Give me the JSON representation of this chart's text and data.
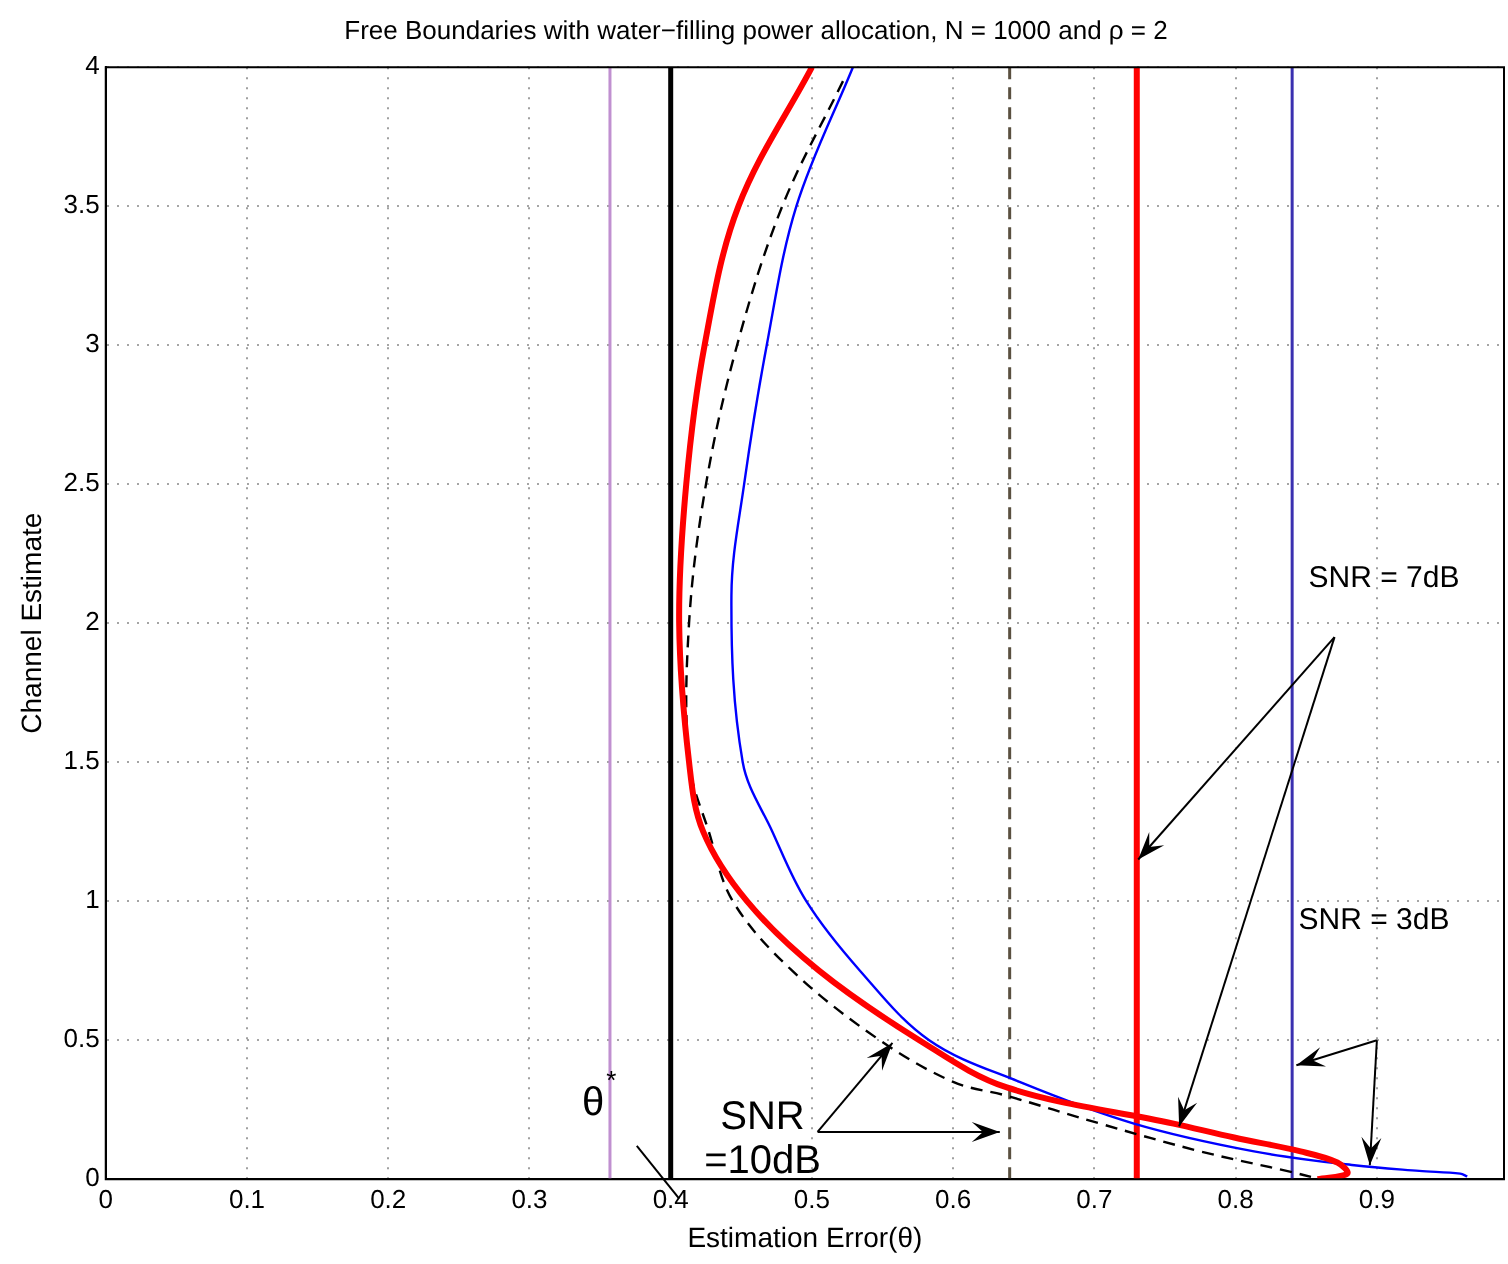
{
  "chart_data": {
    "type": "line",
    "title": "Free Boundaries with water−filling power allocation, N = 1000 and ρ = 2",
    "xlabel": "Estimation Error(θ)",
    "ylabel": "Channel Estimate",
    "xlim": [
      0,
      0.99
    ],
    "ylim": [
      0,
      4
    ],
    "xticks": [
      0,
      0.1,
      0.2,
      0.3,
      0.4,
      0.5,
      0.6,
      0.7,
      0.8,
      0.9
    ],
    "yticks": [
      0,
      0.5,
      1,
      1.5,
      2,
      2.5,
      3,
      3.5,
      4
    ],
    "grid": true,
    "legend": false,
    "marker": "none",
    "series": [
      {
        "color": "#ff0000",
        "line_style": "solid",
        "x": [
          0.5,
          0.448,
          0.424,
          0.411,
          0.406,
          0.413,
          0.423,
          0.454,
          0.505,
          0.576,
          0.638,
          0.756,
          0.799,
          0.846,
          0.872,
          0.879,
          0.858
        ],
        "values": [
          4,
          3.5,
          3,
          2.5,
          2,
          1.5,
          1.25,
          1,
          0.75,
          0.5,
          0.33,
          0.2,
          0.15,
          0.1,
          0.06,
          0.02,
          0
        ]
      },
      {
        "color": "#0000ff",
        "line_style": "solid",
        "x": [
          0.529,
          0.489,
          0.468,
          0.452,
          0.443,
          0.451,
          0.472,
          0.496,
          0.534,
          0.583,
          0.647,
          0.728,
          0.813,
          0.884,
          0.93,
          0.959,
          0.964
        ],
        "values": [
          4,
          3.5,
          3,
          2.5,
          2.1,
          1.5,
          1.25,
          1,
          0.75,
          0.5,
          0.35,
          0.2,
          0.1,
          0.05,
          0.03,
          0.02,
          0.01
        ]
      },
      {
        "color": "#000000",
        "line_style": "dashed",
        "x": [
          0.522,
          0.479,
          0.447,
          0.425,
          0.413,
          0.413,
          0.427,
          0.444,
          0.486,
          0.548,
          0.6,
          0.638,
          0.704,
          0.775,
          0.836,
          0.86
        ],
        "values": [
          3.95,
          3.5,
          3,
          2.5,
          2,
          1.5,
          1.25,
          1,
          0.75,
          0.5,
          0.35,
          0.3,
          0.2,
          0.1,
          0.03,
          0
        ]
      }
    ],
    "ref_lines": [
      {
        "axis": "x",
        "value": 0.357,
        "color": "#c090d0"
      },
      {
        "axis": "x",
        "value": 0.4,
        "color": "#000000"
      },
      {
        "axis": "x",
        "value": 0.64,
        "color": "#5a5040",
        "line_style": "dashed"
      },
      {
        "axis": "x",
        "value": 0.73,
        "color": "#ff0000"
      },
      {
        "axis": "x",
        "value": 0.84,
        "color": "#3a30b0"
      }
    ],
    "annotations": [
      "SNR = 7dB",
      "SNR = 3dB",
      {
        "text": "SNR\n=10dB",
        "x": 0.557,
        "y": 0.49
      },
      "θ$^{*}$"
    ]
  }
}
